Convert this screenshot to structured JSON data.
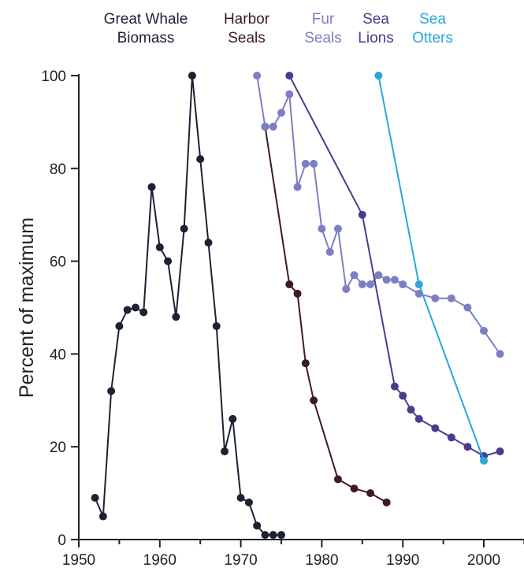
{
  "chart_data": {
    "type": "line",
    "title": "",
    "xlabel": "",
    "ylabel": "Percent of maximum",
    "xlim": [
      1950,
      2005
    ],
    "ylim": [
      0,
      100
    ],
    "x_ticks": [
      1950,
      1960,
      1970,
      1980,
      1990,
      2000
    ],
    "y_ticks": [
      0,
      20,
      40,
      60,
      80,
      100
    ],
    "grid": false,
    "series": [
      {
        "name_lines": [
          "Great Whale",
          "Biomass"
        ],
        "color": "#1a2233",
        "x": [
          1952,
          1953,
          1954,
          1955,
          1956,
          1957,
          1958,
          1959,
          1960,
          1961,
          1962,
          1963,
          1964,
          1965,
          1966,
          1967,
          1968,
          1969,
          1970,
          1971,
          1972,
          1973,
          1974,
          1975
        ],
        "y": [
          9,
          5,
          32,
          46,
          49.5,
          50,
          49,
          76,
          63,
          60,
          48,
          67,
          100,
          82,
          64,
          46,
          19,
          26,
          9,
          8,
          3,
          1,
          1,
          1
        ]
      },
      {
        "name_lines": [
          "Harbor",
          "Seals"
        ],
        "color": "#3d1a28",
        "x": [
          1973,
          1976,
          1977,
          1978,
          1979,
          1982,
          1984,
          1986,
          1988
        ],
        "y": [
          89,
          55,
          53,
          38,
          30,
          13,
          11,
          10,
          8
        ]
      },
      {
        "name_lines": [
          "Fur",
          "Seals"
        ],
        "color": "#7b7fc4",
        "x": [
          1972,
          1973,
          1974,
          1975,
          1976,
          1977,
          1978,
          1979,
          1980,
          1981,
          1982,
          1983,
          1984,
          1985,
          1986,
          1987,
          1988,
          1989,
          1990,
          1992,
          1994,
          1996,
          1998,
          2000,
          2002
        ],
        "y": [
          100,
          89,
          89,
          92,
          96,
          76,
          81,
          81,
          67,
          62,
          67,
          54,
          57,
          55,
          55,
          57,
          56,
          56,
          55,
          53,
          52,
          52,
          50,
          45,
          40
        ]
      },
      {
        "name_lines": [
          "Sea",
          "Lions"
        ],
        "color": "#4a3b8f",
        "x": [
          1976,
          1985,
          1989,
          1990,
          1991,
          1992,
          1994,
          1996,
          1998,
          2000,
          2002
        ],
        "y": [
          100,
          70,
          33,
          31,
          28,
          26,
          24,
          22,
          20,
          18,
          19
        ]
      },
      {
        "name_lines": [
          "Sea",
          "Otters"
        ],
        "color": "#2aa6d9",
        "x": [
          1987,
          1992,
          2000
        ],
        "y": [
          100,
          55,
          17
        ]
      }
    ]
  }
}
